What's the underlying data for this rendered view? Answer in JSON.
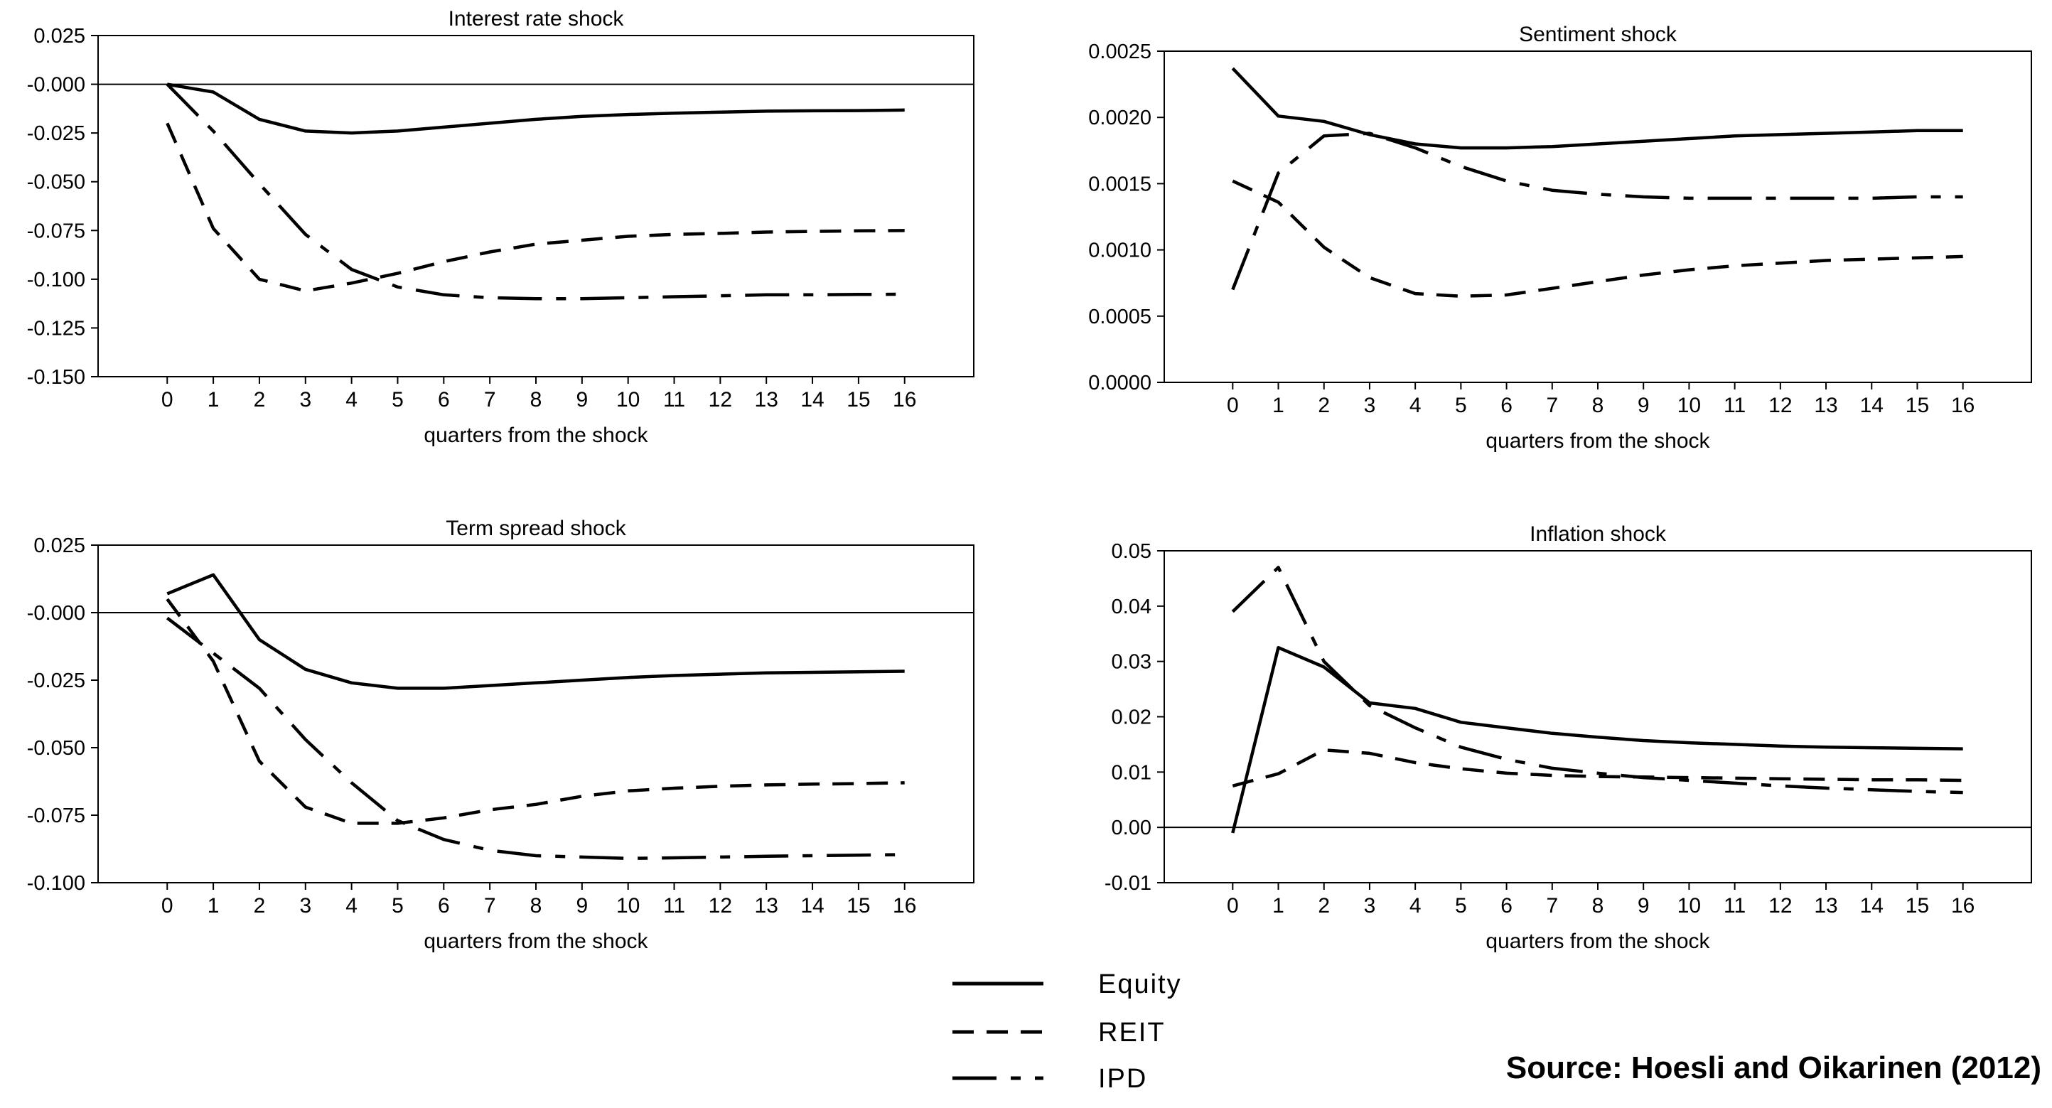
{
  "source_note": "Source: Hoesli and Oikarinen (2012)",
  "legend": [
    {
      "label": "Equity",
      "dash": "solid"
    },
    {
      "label": "REIT",
      "dash": "dashed"
    },
    {
      "label": "IPD",
      "dash": "dashdot"
    }
  ],
  "chart_data": [
    {
      "type": "line",
      "title": "Interest rate shock",
      "xlabel": "quarters from the shock",
      "x": [
        0,
        1,
        2,
        3,
        4,
        5,
        6,
        7,
        8,
        9,
        10,
        11,
        12,
        13,
        14,
        15,
        16
      ],
      "xlim": [
        -1.5,
        17.5
      ],
      "ylim": [
        -0.15,
        0.025
      ],
      "yticks": [
        0.025,
        0.0,
        -0.025,
        -0.05,
        -0.075,
        -0.1,
        -0.125,
        -0.15
      ],
      "ytick_labels": [
        "0.025",
        "-0.000",
        "-0.025",
        "-0.050",
        "-0.075",
        "-0.100",
        "-0.125",
        "-0.150"
      ],
      "zero_line": true,
      "series": [
        {
          "name": "Equity",
          "dash": "solid",
          "values": [
            0.0,
            -0.004,
            -0.018,
            -0.024,
            -0.025,
            -0.024,
            -0.022,
            -0.02,
            -0.018,
            -0.0165,
            -0.0155,
            -0.0148,
            -0.0143,
            -0.0138,
            -0.0136,
            -0.0135,
            -0.0132
          ]
        },
        {
          "name": "REIT",
          "dash": "dashed",
          "values": [
            -0.02,
            -0.074,
            -0.1,
            -0.106,
            -0.102,
            -0.097,
            -0.091,
            -0.086,
            -0.082,
            -0.08,
            -0.078,
            -0.077,
            -0.0765,
            -0.0758,
            -0.0755,
            -0.0752,
            -0.075
          ]
        },
        {
          "name": "IPD",
          "dash": "dashdot",
          "values": [
            0.0,
            -0.024,
            -0.051,
            -0.077,
            -0.095,
            -0.104,
            -0.108,
            -0.1095,
            -0.11,
            -0.11,
            -0.1095,
            -0.109,
            -0.1085,
            -0.108,
            -0.108,
            -0.1078,
            -0.1077
          ]
        }
      ]
    },
    {
      "type": "line",
      "title": "Sentiment shock",
      "xlabel": "quarters from the shock",
      "x": [
        0,
        1,
        2,
        3,
        4,
        5,
        6,
        7,
        8,
        9,
        10,
        11,
        12,
        13,
        14,
        15,
        16
      ],
      "xlim": [
        -1.5,
        17.5
      ],
      "ylim": [
        0.0,
        0.0025
      ],
      "yticks": [
        0.0025,
        0.002,
        0.0015,
        0.001,
        0.0005,
        0.0
      ],
      "ytick_labels": [
        "0.0025",
        "0.0020",
        "0.0015",
        "0.0010",
        "0.0005",
        "0.0000"
      ],
      "zero_line": false,
      "series": [
        {
          "name": "Equity",
          "dash": "solid",
          "values": [
            0.00237,
            0.00201,
            0.00197,
            0.00187,
            0.0018,
            0.00177,
            0.00177,
            0.00178,
            0.0018,
            0.00182,
            0.00184,
            0.00186,
            0.00187,
            0.00188,
            0.00189,
            0.0019,
            0.0019
          ]
        },
        {
          "name": "REIT",
          "dash": "dashed",
          "values": [
            0.00152,
            0.00136,
            0.00102,
            0.00079,
            0.00067,
            0.00065,
            0.00066,
            0.00071,
            0.00076,
            0.00081,
            0.00085,
            0.00088,
            0.0009,
            0.00092,
            0.00093,
            0.00094,
            0.00095
          ]
        },
        {
          "name": "IPD",
          "dash": "dashdot",
          "values": [
            0.0007,
            0.00158,
            0.00186,
            0.00188,
            0.00177,
            0.00163,
            0.00152,
            0.00145,
            0.00142,
            0.0014,
            0.00139,
            0.00139,
            0.00139,
            0.00139,
            0.00139,
            0.0014,
            0.0014
          ]
        }
      ]
    },
    {
      "type": "line",
      "title": "Term spread shock",
      "xlabel": "quarters from the shock",
      "x": [
        0,
        1,
        2,
        3,
        4,
        5,
        6,
        7,
        8,
        9,
        10,
        11,
        12,
        13,
        14,
        15,
        16
      ],
      "xlim": [
        -1.5,
        17.5
      ],
      "ylim": [
        -0.1,
        0.025
      ],
      "yticks": [
        0.025,
        0.0,
        -0.025,
        -0.05,
        -0.075,
        -0.1
      ],
      "ytick_labels": [
        "0.025",
        "-0.000",
        "-0.025",
        "-0.050",
        "-0.075",
        "-0.100"
      ],
      "zero_line": true,
      "series": [
        {
          "name": "Equity",
          "dash": "solid",
          "values": [
            0.007,
            0.014,
            -0.01,
            -0.021,
            -0.026,
            -0.028,
            -0.028,
            -0.027,
            -0.026,
            -0.025,
            -0.024,
            -0.0233,
            -0.0228,
            -0.0223,
            -0.0221,
            -0.0219,
            -0.0217
          ]
        },
        {
          "name": "REIT",
          "dash": "dashed",
          "values": [
            0.005,
            -0.018,
            -0.055,
            -0.072,
            -0.078,
            -0.078,
            -0.076,
            -0.073,
            -0.071,
            -0.068,
            -0.066,
            -0.065,
            -0.0643,
            -0.0638,
            -0.0635,
            -0.0633,
            -0.063
          ]
        },
        {
          "name": "IPD",
          "dash": "dashdot",
          "values": [
            -0.002,
            -0.015,
            -0.028,
            -0.047,
            -0.063,
            -0.077,
            -0.084,
            -0.088,
            -0.09,
            -0.0905,
            -0.091,
            -0.0908,
            -0.0905,
            -0.0902,
            -0.09,
            -0.0898,
            -0.0896
          ]
        }
      ]
    },
    {
      "type": "line",
      "title": "Inflation shock",
      "xlabel": "quarters from the shock",
      "x": [
        0,
        1,
        2,
        3,
        4,
        5,
        6,
        7,
        8,
        9,
        10,
        11,
        12,
        13,
        14,
        15,
        16
      ],
      "xlim": [
        -1.5,
        17.5
      ],
      "ylim": [
        -0.01,
        0.05
      ],
      "yticks": [
        0.05,
        0.04,
        0.03,
        0.02,
        0.01,
        0.0,
        -0.01
      ],
      "ytick_labels": [
        "0.05",
        "0.04",
        "0.03",
        "0.02",
        "0.01",
        "0.00",
        "-0.01"
      ],
      "zero_line": true,
      "series": [
        {
          "name": "Equity",
          "dash": "solid",
          "values": [
            -0.001,
            0.0325,
            0.029,
            0.0225,
            0.0215,
            0.019,
            0.018,
            0.017,
            0.0163,
            0.0157,
            0.0153,
            0.015,
            0.0147,
            0.0145,
            0.0144,
            0.0143,
            0.0142
          ]
        },
        {
          "name": "REIT",
          "dash": "dashed",
          "values": [
            0.0075,
            0.0097,
            0.014,
            0.0134,
            0.0117,
            0.0106,
            0.0098,
            0.0094,
            0.0092,
            0.0091,
            0.009,
            0.0089,
            0.0088,
            0.0087,
            0.0086,
            0.0086,
            0.0085
          ]
        },
        {
          "name": "IPD",
          "dash": "dashdot",
          "values": [
            0.039,
            0.047,
            0.03,
            0.022,
            0.018,
            0.0145,
            0.0123,
            0.0107,
            0.0098,
            0.009,
            0.0085,
            0.008,
            0.0075,
            0.0071,
            0.0068,
            0.0065,
            0.0063
          ]
        }
      ]
    }
  ]
}
